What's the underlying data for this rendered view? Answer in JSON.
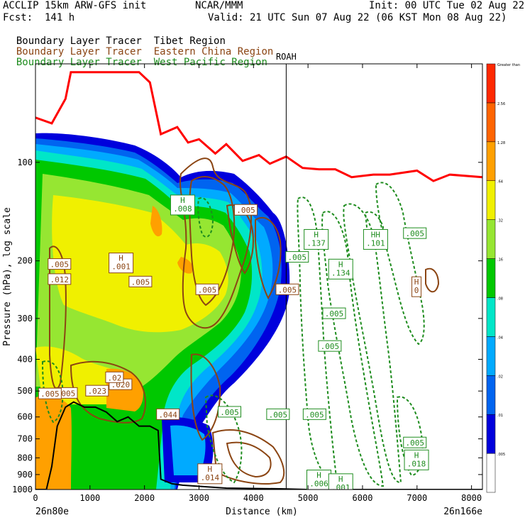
{
  "header": {
    "line1_left": "ACCLIP 15km ARW-GFS init",
    "line1_center": "NCAR/MMM",
    "line1_right": "Init: 00 UTC Tue 02 Aug 22",
    "line2_left": "Fcst:  141 h",
    "line2_right": "Valid: 21 UTC Sun 07 Aug 22 (06 KST Mon 08 Aug 22)"
  },
  "legend": [
    {
      "label": "Boundary Layer Tracer",
      "region": "Tibet Region",
      "color": "#000000"
    },
    {
      "label": "Boundary Layer Tracer",
      "region": "Eastern China Region",
      "color": "#8b4513"
    },
    {
      "label": "Boundary Layer Tracer",
      "region": "West Pacific Region",
      "color": "#1e8c1e"
    }
  ],
  "chart_data": {
    "type": "heatmap",
    "title": "",
    "xlabel": "Distance (km)",
    "ylabel": "Pressure (hPa), log scale",
    "y_scale": "log",
    "x_range": [
      0,
      8200
    ],
    "y_range": [
      1000,
      50
    ],
    "x_ticks": [
      0,
      1000,
      2000,
      3000,
      4000,
      5000,
      6000,
      7000,
      8000
    ],
    "x_tick_labels": [
      "0",
      "1000",
      "2000",
      "3000",
      "4000",
      "5000",
      "6000",
      "7000",
      "8000"
    ],
    "y_ticks": [
      100,
      200,
      300,
      400,
      500,
      600,
      700,
      800,
      900,
      1000
    ],
    "y_tick_labels": [
      "100",
      "200",
      "300",
      "400",
      "500",
      "600",
      "700",
      "800",
      "900",
      "1000"
    ],
    "x_endpoints": {
      "left": "26n80e",
      "right": "26n166e"
    },
    "vertical_marker": {
      "label": "ROAH",
      "x": 4600
    },
    "colorbar": {
      "levels": [
        ".005",
        ".01",
        ".02",
        ".04",
        ".08",
        ".16",
        ".32",
        ".64",
        "1.28",
        "2.56",
        "Greater than"
      ],
      "colors": [
        "#ffffff",
        "#0000dc",
        "#0064f0",
        "#00aaff",
        "#00e6c8",
        "#00c800",
        "#96e632",
        "#f0f000",
        "#ffa000",
        "#ff6400",
        "#ff2800"
      ]
    },
    "tropopause_line": {
      "color": "#ff0000",
      "points": [
        [
          0,
          73
        ],
        [
          300,
          76
        ],
        [
          550,
          64
        ],
        [
          650,
          53
        ],
        [
          1900,
          53
        ],
        [
          2100,
          57
        ],
        [
          2300,
          82
        ],
        [
          2600,
          78
        ],
        [
          2800,
          87
        ],
        [
          3000,
          85
        ],
        [
          3300,
          94
        ],
        [
          3500,
          88
        ],
        [
          3800,
          99
        ],
        [
          4100,
          95
        ],
        [
          4300,
          101
        ],
        [
          4600,
          96
        ],
        [
          4900,
          104
        ],
        [
          5200,
          105
        ],
        [
          5500,
          105
        ],
        [
          5800,
          111
        ],
        [
          6200,
          109
        ],
        [
          6500,
          109
        ],
        [
          7000,
          106
        ],
        [
          7300,
          114
        ],
        [
          7600,
          109
        ],
        [
          8200,
          111
        ]
      ]
    },
    "terrain_line": {
      "color": "#000000",
      "points": [
        [
          0,
          1000
        ],
        [
          200,
          1000
        ],
        [
          300,
          850
        ],
        [
          400,
          640
        ],
        [
          550,
          560
        ],
        [
          700,
          540
        ],
        [
          900,
          560
        ],
        [
          1100,
          560
        ],
        [
          1300,
          580
        ],
        [
          1500,
          620
        ],
        [
          1700,
          600
        ],
        [
          1900,
          640
        ],
        [
          2100,
          640
        ],
        [
          2250,
          660
        ],
        [
          2300,
          930
        ],
        [
          2500,
          960
        ],
        [
          2700,
          970
        ],
        [
          3100,
          980
        ],
        [
          3500,
          990
        ],
        [
          4500,
          995
        ],
        [
          5000,
          1000
        ],
        [
          8200,
          1000
        ]
      ]
    },
    "contour_labels": [
      {
        "text": ".005",
        "x": 1925,
        "p": 232,
        "series": "brown"
      },
      {
        "text": ".005",
        "x": 3150,
        "p": 245,
        "series": "brown"
      },
      {
        "text": ".005",
        "x": 3860,
        "p": 140,
        "series": "brown"
      },
      {
        "text": ".005",
        "x": 4620,
        "p": 245,
        "series": "brown"
      },
      {
        "text": ".005",
        "x": 4800,
        "p": 195,
        "series": "green"
      },
      {
        "text": ".005",
        "x": 5480,
        "p": 290,
        "series": "green"
      },
      {
        "text": ".005",
        "x": 5400,
        "p": 365,
        "series": "green"
      },
      {
        "text": ".005",
        "x": 6960,
        "p": 165,
        "series": "green"
      },
      {
        "text": ".005",
        "x": 4450,
        "p": 590,
        "series": "green"
      },
      {
        "text": ".005",
        "x": 5120,
        "p": 590,
        "series": "green"
      },
      {
        "text": ".005",
        "x": 3560,
        "p": 580,
        "series": "green"
      },
      {
        "text": ".005",
        "x": 6960,
        "p": 720,
        "series": "green"
      },
      {
        "text": ".005",
        "x": 560,
        "p": 508,
        "series": "brown"
      },
      {
        "text": ".005",
        "x": 265,
        "p": 510,
        "series": "brown"
      },
      {
        "text": ".005",
        "x": 440,
        "p": 205,
        "series": "brown"
      },
      {
        "text": ".012",
        "x": 440,
        "p": 228,
        "series": "brown"
      },
      {
        "text": ".023",
        "x": 1130,
        "p": 500,
        "series": "brown"
      },
      {
        "text": ".020",
        "x": 1560,
        "p": 478,
        "series": "brown"
      },
      {
        "text": ".044",
        "x": 2430,
        "p": 590,
        "series": "brown"
      },
      {
        "text": ".02",
        "x": 1450,
        "p": 455,
        "series": "brown"
      }
    ],
    "high_markers": [
      {
        "text": "H\n.001",
        "x": 1570,
        "p": 203,
        "series": "brown"
      },
      {
        "text": "H\n.008",
        "x": 2700,
        "p": 135,
        "series": "green"
      },
      {
        "text": "H\n.137",
        "x": 5150,
        "p": 172,
        "series": "green"
      },
      {
        "text": "HH\n.101",
        "x": 6240,
        "p": 172,
        "series": "green"
      },
      {
        "text": "H\n.134",
        "x": 5600,
        "p": 212,
        "series": "green"
      },
      {
        "text": "H\n0",
        "x": 6990,
        "p": 240,
        "series": "brown"
      },
      {
        "text": "H\n.018",
        "x": 6990,
        "p": 812,
        "series": "green"
      },
      {
        "text": "H\n.006",
        "x": 5200,
        "p": 935,
        "series": "green"
      },
      {
        "text": "H\n.001",
        "x": 5600,
        "p": 960,
        "series": "green"
      },
      {
        "text": "H\n.014",
        "x": 3200,
        "p": 895,
        "series": "brown"
      }
    ]
  }
}
